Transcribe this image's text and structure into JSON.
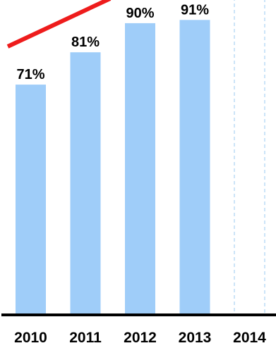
{
  "chart_data": {
    "type": "bar",
    "categories": [
      "2010",
      "2011",
      "2012",
      "2013",
      "2014"
    ],
    "values": [
      71,
      81,
      90,
      91,
      null
    ],
    "value_labels": [
      "71%",
      "81%",
      "90%",
      "91%",
      ""
    ],
    "projected_category": "2014",
    "title": "",
    "xlabel": "",
    "ylabel": "",
    "ylim": [
      0,
      100
    ],
    "grid": false,
    "legend": "none",
    "trend_line": {
      "color": "#ee1c1c",
      "direction": "upward"
    },
    "colors": {
      "bar": "#9fcdf9",
      "projected_bar_outline": "#bcdcf5",
      "axis": "#000000",
      "trend": "#ee1c1c"
    }
  }
}
